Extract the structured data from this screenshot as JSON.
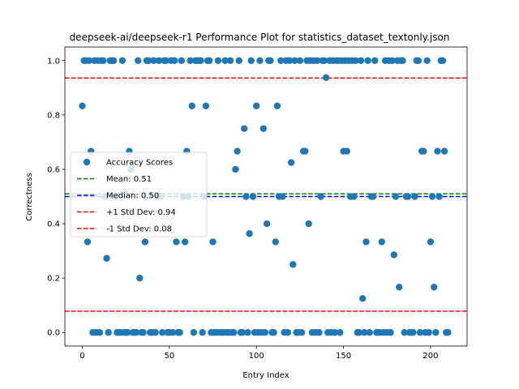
{
  "chart_data": {
    "type": "scatter",
    "title": "deepseek-ai/deepseek-r1 Performance Plot for statistics_dataset_textonly.json",
    "xlabel": "Entry Index",
    "ylabel": "Correctness",
    "xlim": [
      -10,
      221
    ],
    "ylim": [
      -0.05,
      1.05
    ],
    "xticks": [
      "0",
      "50",
      "100",
      "150",
      "200"
    ],
    "yticks": [
      "0.0",
      "0.2",
      "0.4",
      "0.6",
      "0.8",
      "1.0"
    ],
    "grid": false,
    "legend_position": "center-left",
    "series": [
      {
        "name": "Accuracy Scores",
        "color": "#1f77b4",
        "points": [
          [
            0,
            0.8333
          ],
          [
            1,
            1
          ],
          [
            2,
            1
          ],
          [
            3,
            0.3333
          ],
          [
            4,
            1
          ],
          [
            5,
            0.6667
          ],
          [
            6,
            0
          ],
          [
            7,
            1
          ],
          [
            8,
            0
          ],
          [
            9,
            1
          ],
          [
            10,
            0
          ],
          [
            11,
            1
          ],
          [
            12,
            1
          ],
          [
            13,
            0.5
          ],
          [
            14,
            0.2727
          ],
          [
            15,
            0
          ],
          [
            16,
            1
          ],
          [
            17,
            1
          ],
          [
            18,
            1
          ],
          [
            19,
            0.5
          ],
          [
            20,
            0
          ],
          [
            21,
            0
          ],
          [
            22,
            0
          ],
          [
            23,
            1
          ],
          [
            24,
            0
          ],
          [
            25,
            0
          ],
          [
            26,
            0
          ],
          [
            27,
            0.6667
          ],
          [
            28,
            0.6
          ],
          [
            29,
            0
          ],
          [
            30,
            0
          ],
          [
            31,
            0
          ],
          [
            32,
            1
          ],
          [
            33,
            0.2
          ],
          [
            34,
            0
          ],
          [
            35,
            0
          ],
          [
            36,
            0.3333
          ],
          [
            37,
            1
          ],
          [
            38,
            1
          ],
          [
            39,
            0
          ],
          [
            40,
            0
          ],
          [
            41,
            1
          ],
          [
            42,
            0
          ],
          [
            43,
            0.5
          ],
          [
            44,
            1
          ],
          [
            45,
            0.5
          ],
          [
            46,
            0
          ],
          [
            47,
            1
          ],
          [
            48,
            1
          ],
          [
            49,
            0
          ],
          [
            50,
            0
          ],
          [
            51,
            1
          ],
          [
            52,
            0
          ],
          [
            53,
            1
          ],
          [
            54,
            0.3333
          ],
          [
            55,
            0
          ],
          [
            56,
            0
          ],
          [
            57,
            1
          ],
          [
            58,
            0.5
          ],
          [
            59,
            0.3333
          ],
          [
            60,
            0.6667
          ],
          [
            61,
            0.5
          ],
          [
            62,
            1
          ],
          [
            63,
            0.8333
          ],
          [
            64,
            0
          ],
          [
            65,
            1
          ],
          [
            66,
            1
          ],
          [
            67,
            1
          ],
          [
            68,
            1
          ],
          [
            69,
            0
          ],
          [
            70,
            0.5
          ],
          [
            71,
            0.8333
          ],
          [
            72,
            1
          ],
          [
            73,
            1
          ],
          [
            74,
            0
          ],
          [
            75,
            0.3333
          ],
          [
            76,
            0
          ],
          [
            77,
            0
          ],
          [
            78,
            1
          ],
          [
            79,
            0
          ],
          [
            80,
            0
          ],
          [
            81,
            0
          ],
          [
            82,
            1
          ],
          [
            83,
            0
          ],
          [
            84,
            0
          ],
          [
            85,
            1
          ],
          [
            86,
            0
          ],
          [
            87,
            0
          ],
          [
            88,
            0.6
          ],
          [
            89,
            0.6667
          ],
          [
            90,
            1
          ],
          [
            91,
            0
          ],
          [
            92,
            0
          ],
          [
            93,
            0.75
          ],
          [
            94,
            0.5
          ],
          [
            95,
            0
          ],
          [
            96,
            0.3636
          ],
          [
            97,
            1
          ],
          [
            98,
            0.5
          ],
          [
            99,
            0
          ],
          [
            100,
            0.8333
          ],
          [
            101,
            0
          ],
          [
            102,
            1
          ],
          [
            103,
            0
          ],
          [
            104,
            0.75
          ],
          [
            105,
            0
          ],
          [
            106,
            0.4
          ],
          [
            107,
            1
          ],
          [
            108,
            1
          ],
          [
            109,
            0
          ],
          [
            110,
            0
          ],
          [
            111,
            0.3333
          ],
          [
            112,
            0.8333
          ],
          [
            113,
            0.5
          ],
          [
            114,
            1
          ],
          [
            115,
            0.5
          ],
          [
            116,
            0
          ],
          [
            117,
            1
          ],
          [
            118,
            0
          ],
          [
            119,
            1
          ],
          [
            120,
            0.625
          ],
          [
            121,
            0.25
          ],
          [
            122,
            1
          ],
          [
            123,
            0
          ],
          [
            124,
            0
          ],
          [
            125,
            1
          ],
          [
            126,
            0
          ],
          [
            127,
            0.6667
          ],
          [
            128,
            0.6667
          ],
          [
            129,
            1
          ],
          [
            130,
            0.4
          ],
          [
            131,
            1
          ],
          [
            132,
            0
          ],
          [
            133,
            1
          ],
          [
            134,
            0
          ],
          [
            135,
            1
          ],
          [
            136,
            0
          ],
          [
            137,
            0.5
          ],
          [
            138,
            1
          ],
          [
            139,
            1
          ],
          [
            140,
            0.9375
          ],
          [
            141,
            0
          ],
          [
            142,
            1
          ],
          [
            143,
            0
          ],
          [
            144,
            1
          ],
          [
            145,
            0
          ],
          [
            146,
            1
          ],
          [
            147,
            1
          ],
          [
            148,
            0
          ],
          [
            149,
            1
          ],
          [
            150,
            0.6667
          ],
          [
            151,
            1
          ],
          [
            152,
            0.6667
          ],
          [
            153,
            1
          ],
          [
            154,
            0.5
          ],
          [
            155,
            1
          ],
          [
            156,
            0.5
          ],
          [
            157,
            1
          ],
          [
            158,
            0
          ],
          [
            159,
            0
          ],
          [
            160,
            1
          ],
          [
            161,
            0.125
          ],
          [
            162,
            0
          ],
          [
            163,
            0.3333
          ],
          [
            164,
            1
          ],
          [
            165,
            0
          ],
          [
            166,
            0.5
          ],
          [
            167,
            0.5
          ],
          [
            168,
            1
          ],
          [
            169,
            0
          ],
          [
            170,
            0
          ],
          [
            171,
            0
          ],
          [
            172,
            0.3333
          ],
          [
            173,
            0
          ],
          [
            174,
            1
          ],
          [
            175,
            0
          ],
          [
            176,
            1
          ],
          [
            177,
            0
          ],
          [
            178,
            1
          ],
          [
            179,
            0.2857
          ],
          [
            180,
            0.5
          ],
          [
            181,
            1
          ],
          [
            182,
            0.1667
          ],
          [
            183,
            1
          ],
          [
            184,
            1
          ],
          [
            185,
            0
          ],
          [
            186,
            0.5
          ],
          [
            187,
            0.5
          ],
          [
            188,
            0
          ],
          [
            189,
            0
          ],
          [
            190,
            0
          ],
          [
            191,
            0.5
          ],
          [
            192,
            1
          ],
          [
            193,
            1
          ],
          [
            194,
            0
          ],
          [
            195,
            0.6667
          ],
          [
            196,
            0.6667
          ],
          [
            197,
            0
          ],
          [
            198,
            1
          ],
          [
            199,
            0
          ],
          [
            200,
            0.3333
          ],
          [
            201,
            0.5
          ],
          [
            202,
            0.1667
          ],
          [
            203,
            0
          ],
          [
            204,
            0.6667
          ],
          [
            205,
            0.5
          ],
          [
            206,
            1
          ],
          [
            207,
            1
          ],
          [
            208,
            0.6667
          ],
          [
            209,
            0
          ],
          [
            210,
            0
          ]
        ]
      }
    ],
    "reference_lines": [
      {
        "label": "Mean: 0.51",
        "value": 0.51,
        "color": "#008000",
        "style": "dashed"
      },
      {
        "label": "Median: 0.50",
        "value": 0.5,
        "color": "#0000ff",
        "style": "dashed"
      },
      {
        "label": "+1 Std Dev: 0.94",
        "value": 0.936,
        "color": "#ff0000",
        "style": "dashed"
      },
      {
        "label": "-1 Std Dev: 0.08",
        "value": 0.078,
        "color": "#ff0000",
        "style": "dashed"
      }
    ]
  }
}
